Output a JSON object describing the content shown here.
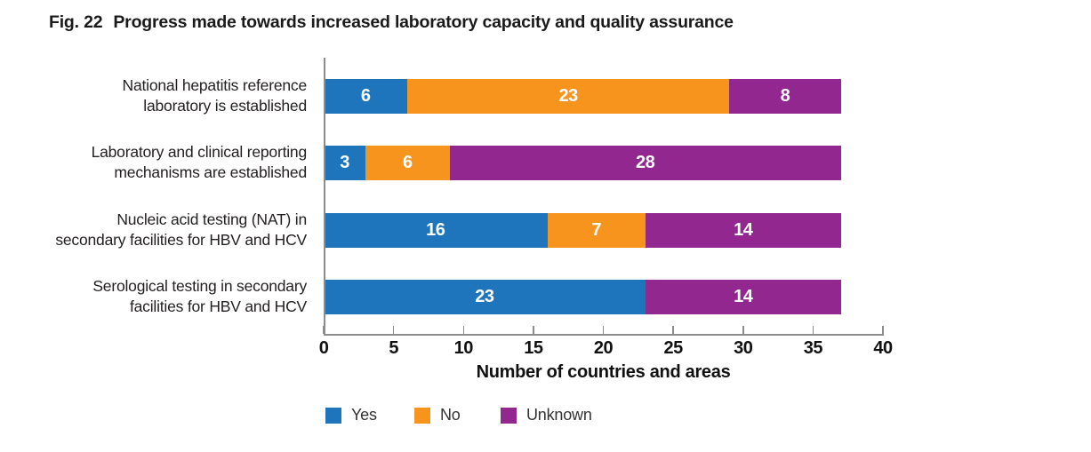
{
  "figure": {
    "label": "Fig. 22",
    "title": "Progress made towards increased laboratory capacity and quality assurance"
  },
  "chart_data": {
    "type": "bar",
    "orientation": "horizontal",
    "stacked": true,
    "categories": [
      {
        "lines": [
          "National hepatitis reference",
          "laboratory is established"
        ]
      },
      {
        "lines": [
          "Laboratory and clinical reporting",
          "mechanisms are established"
        ]
      },
      {
        "lines": [
          "Nucleic acid testing (NAT) in",
          "secondary facilities for HBV and HCV"
        ]
      },
      {
        "lines": [
          "Serological testing in secondary",
          "facilities for HBV and HCV"
        ]
      }
    ],
    "series": [
      {
        "name": "Yes",
        "color": "#1E75BB",
        "values": [
          6,
          3,
          16,
          23
        ]
      },
      {
        "name": "No",
        "color": "#F7941E",
        "values": [
          23,
          6,
          7,
          0
        ]
      },
      {
        "name": "Unknown",
        "color": "#92278F",
        "values": [
          8,
          28,
          14,
          14
        ]
      }
    ],
    "bar_totals": [
      37,
      37,
      37,
      37
    ],
    "value_label_color": "#ffffff",
    "xlabel": "Number of countries and areas",
    "xlim": [
      0,
      40
    ],
    "xticks": [
      0,
      5,
      10,
      15,
      20,
      25,
      30,
      35,
      40
    ],
    "grid": false,
    "legend_position": "bottom",
    "legend": [
      "Yes",
      "No",
      "Unknown"
    ]
  }
}
